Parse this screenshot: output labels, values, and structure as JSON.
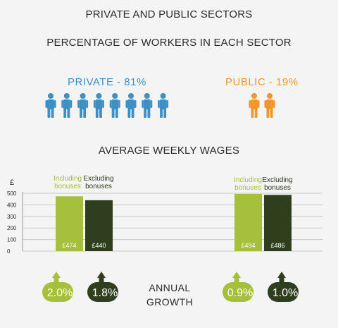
{
  "header": {
    "title": "PRIVATE AND PUBLIC SECTORS",
    "subtitle": "PERCENTAGE OF WORKERS IN EACH SECTOR"
  },
  "share": {
    "private": {
      "label": "PRIVATE  -  81%",
      "percent": 81,
      "icon_count": 8,
      "color": "#3d8fc4",
      "icon": "person-icon"
    },
    "public": {
      "label": "PUBLIC  -  19%",
      "percent": 19,
      "icon_count": 2,
      "color": "#f0962a",
      "icon": "person-icon"
    }
  },
  "wages_title": "AVERAGE WEEKLY WAGES",
  "legend": {
    "private_including": "Including bonuses",
    "private_excluding": "Excluding bonuses",
    "public_including": "Including bonuses",
    "public_excluding": "Excluding bonuses"
  },
  "growth": {
    "label_line1": "ANNUAL",
    "label_line2": "GROWTH",
    "private_including": "2.0%",
    "private_excluding": "1.8%",
    "public_including": "0.9%",
    "public_excluding": "1.0%",
    "icon": "arrow-up-icon"
  },
  "colors": {
    "including": "#a6bf3c",
    "excluding": "#2f3e1c",
    "private": "#3d8fc4",
    "public": "#f0962a"
  },
  "chart_data": {
    "type": "bar",
    "ylabel": "£",
    "ylim": [
      0,
      500
    ],
    "yticks": [
      0,
      100,
      200,
      300,
      400,
      500
    ],
    "grid": true,
    "groups": [
      {
        "sector": "Private",
        "bars": [
          {
            "name": "Including bonuses",
            "value": 474,
            "label": "£474"
          },
          {
            "name": "Excluding bonuses",
            "value": 440,
            "label": "£440"
          }
        ]
      },
      {
        "sector": "Public",
        "bars": [
          {
            "name": "Including bonuses",
            "value": 494,
            "label": "£494"
          },
          {
            "name": "Excluding bonuses",
            "value": 486,
            "label": "£486"
          }
        ]
      }
    ]
  }
}
